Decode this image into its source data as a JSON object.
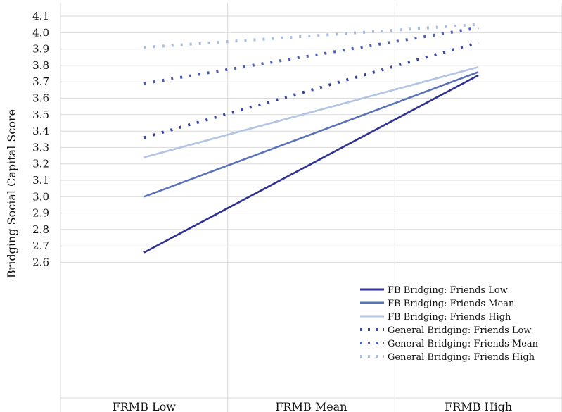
{
  "chart_data": {
    "type": "line",
    "title": "",
    "xlabel": "",
    "ylabel": "Bridging Social Capital Score",
    "categories": [
      "FRMB Low",
      "FRMB Mean",
      "FRMB High"
    ],
    "ylim": [
      2.6,
      4.1
    ],
    "yticks": [
      "2.6",
      "2.7",
      "2.8",
      "2.9",
      "3.0",
      "3.1",
      "3.2",
      "3.3",
      "3.4",
      "3.5",
      "3.6",
      "3.7",
      "3.8",
      "3.9",
      "4.0",
      "4.1"
    ],
    "grid": true,
    "legend_position": "bottom-right",
    "series": [
      {
        "name": "FB Bridging: Friends Low",
        "x": [
          0,
          2
        ],
        "values": [
          2.66,
          3.74
        ],
        "color": "#2e3192",
        "style": "solid"
      },
      {
        "name": "FB Bridging: Friends Mean",
        "x": [
          0,
          2
        ],
        "values": [
          3.0,
          3.76
        ],
        "color": "#5a72b8",
        "style": "solid"
      },
      {
        "name": "FB Bridging: Friends High",
        "x": [
          0,
          2
        ],
        "values": [
          3.24,
          3.79
        ],
        "color": "#b3c4e4",
        "style": "solid"
      },
      {
        "name": "General Bridging: Friends Low",
        "x": [
          0,
          2
        ],
        "values": [
          3.36,
          3.94
        ],
        "color": "#3a47a4",
        "style": "dotted"
      },
      {
        "name": "General Bridging: Friends Mean",
        "x": [
          0,
          2
        ],
        "values": [
          3.69,
          4.03
        ],
        "color": "#4c5db4",
        "style": "dotted"
      },
      {
        "name": "General Bridging: Friends High",
        "x": [
          0,
          2
        ],
        "values": [
          3.91,
          4.05
        ],
        "color": "#a9bce2",
        "style": "dotted"
      }
    ]
  }
}
